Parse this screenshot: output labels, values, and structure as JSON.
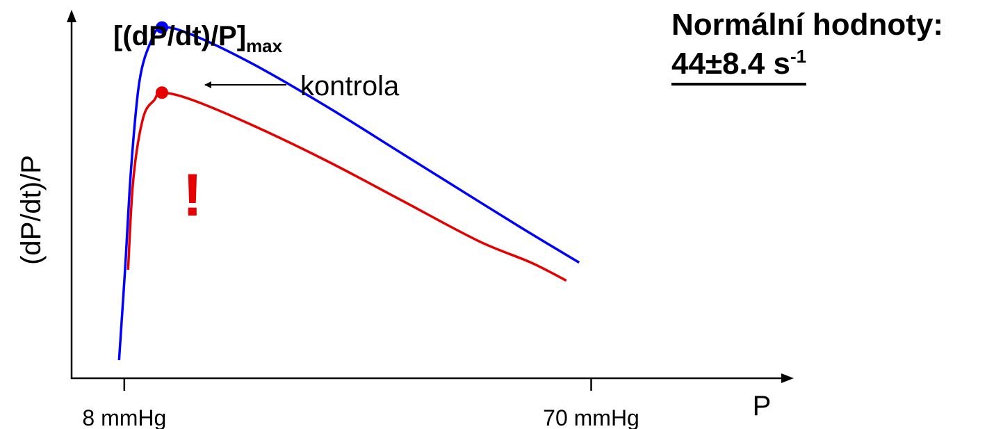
{
  "chart_data": {
    "type": "line",
    "title_main": "[(dP/dt)/P]",
    "title_sub": "max",
    "xlabel": "P",
    "ylabel": "(dP/dt)/P",
    "x_ticks": [
      {
        "value": 8,
        "label": "8 mmHg"
      },
      {
        "value": 70,
        "label": "70 mmHg"
      }
    ],
    "xlim": [
      1,
      97
    ],
    "ylim": [
      0,
      1
    ],
    "grid": false,
    "series": [
      {
        "name": "kontrola",
        "color": "#0000ff",
        "points": [
          [
            7.3,
            0.05
          ],
          [
            8.1,
            0.3
          ],
          [
            8.9,
            0.58
          ],
          [
            10,
            0.82
          ],
          [
            11.5,
            0.93
          ],
          [
            13,
            0.97
          ],
          [
            17,
            0.95
          ],
          [
            25,
            0.87
          ],
          [
            35,
            0.75
          ],
          [
            45,
            0.62
          ],
          [
            55,
            0.49
          ],
          [
            62,
            0.4
          ],
          [
            68.4,
            0.32
          ]
        ]
      },
      {
        "name": "",
        "color": "#e60000",
        "points": [
          [
            8.5,
            0.3
          ],
          [
            9.2,
            0.55
          ],
          [
            10.5,
            0.72
          ],
          [
            12,
            0.77
          ],
          [
            13,
            0.79
          ],
          [
            17,
            0.77
          ],
          [
            25,
            0.7
          ],
          [
            35,
            0.6
          ],
          [
            45,
            0.49
          ],
          [
            55,
            0.38
          ],
          [
            62,
            0.32
          ],
          [
            66.7,
            0.27
          ]
        ]
      }
    ],
    "maxima": [
      {
        "series": "kontrola",
        "x": 13,
        "y": 0.97,
        "color": "#0000ff"
      },
      {
        "series": "",
        "x": 13,
        "y": 0.79,
        "color": "#e60000"
      }
    ],
    "annotations": {
      "control_label": "kontrola",
      "warning": "!"
    }
  },
  "note": {
    "heading": "Normální hodnoty:",
    "value": "44±8.4 s",
    "value_sup": "-1"
  }
}
